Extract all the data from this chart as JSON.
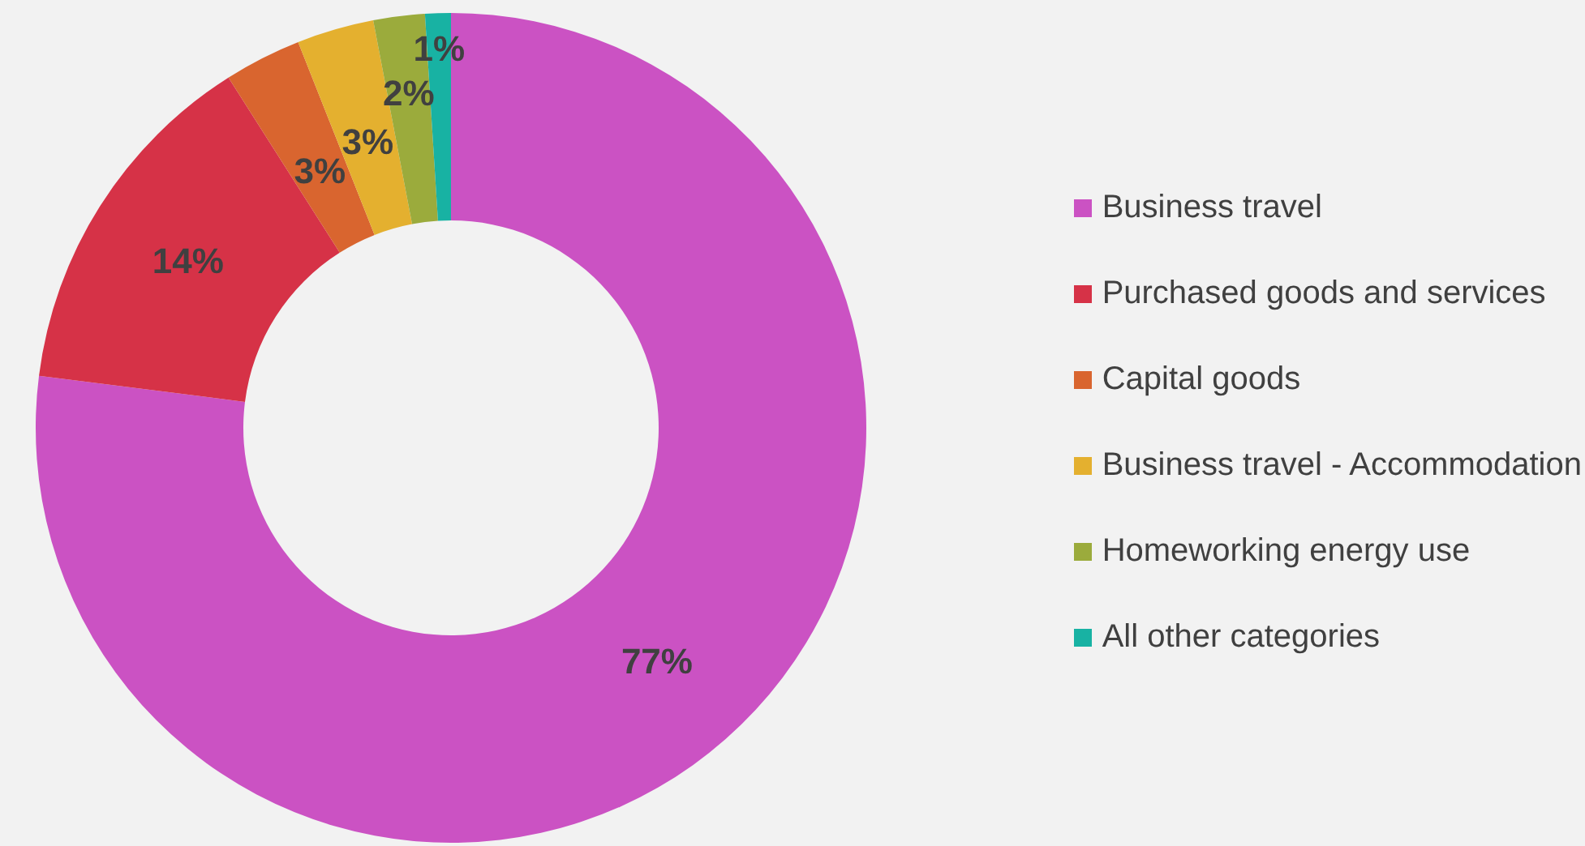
{
  "chart_data": {
    "type": "donut",
    "categories": [
      "Business travel",
      "Purchased goods and services",
      "Capital goods",
      "Business travel - Accommodation",
      "Homeworking energy use",
      "All other categories"
    ],
    "values": [
      77,
      14,
      3,
      3,
      2,
      1
    ],
    "value_labels": [
      "77%",
      "14%",
      "3%",
      "3%",
      "2%",
      "1%"
    ],
    "colors": [
      "#cb52c3",
      "#d63247",
      "#d9652f",
      "#e4b02f",
      "#9bab3c",
      "#18b2a3"
    ],
    "legend": "right"
  }
}
